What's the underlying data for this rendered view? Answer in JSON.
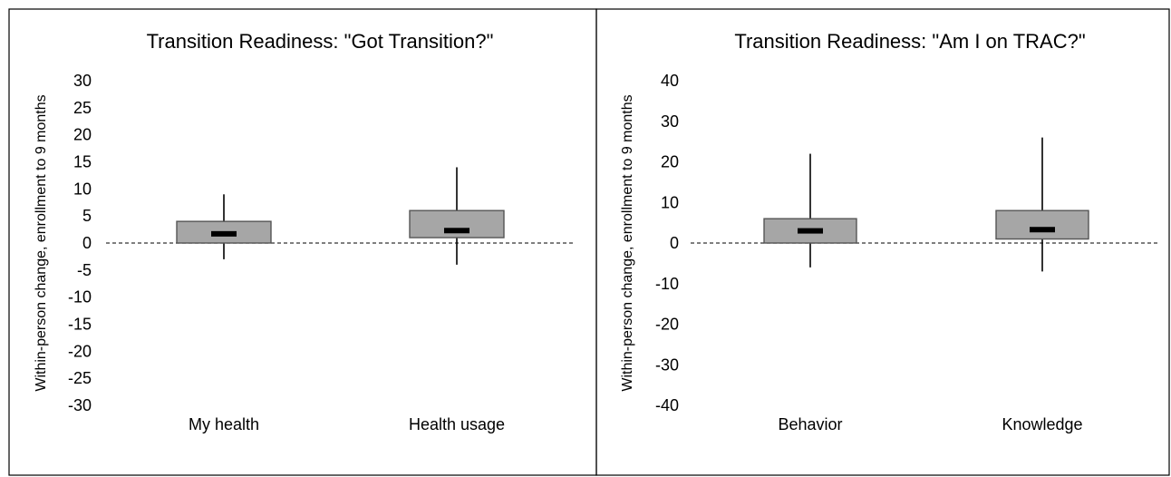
{
  "chart_data": [
    {
      "type": "box",
      "title": "Transition Readiness: \"Got Transition?\"",
      "ylabel": "Within-person change, enrollment to 9 months",
      "ylim": [
        -30,
        30
      ],
      "yticks": [
        30,
        25,
        20,
        15,
        10,
        5,
        0,
        -5,
        -10,
        -15,
        -20,
        -25,
        -30
      ],
      "reference_line": 0,
      "categories": [
        "My health",
        "Health usage"
      ],
      "boxes": [
        {
          "category": "My health",
          "whisker_low": -3,
          "q1": 0,
          "median": 1.7,
          "q3": 4,
          "whisker_high": 9
        },
        {
          "category": "Health usage",
          "whisker_low": -4,
          "q1": 1,
          "median": 2.3,
          "q3": 6,
          "whisker_high": 14
        }
      ],
      "colors": {
        "box_fill": "#a6a6a6",
        "box_stroke": "#555555",
        "median": "#000000"
      }
    },
    {
      "type": "box",
      "title": "Transition Readiness: \"Am I on TRAC?\"",
      "ylabel": "Within-person change, enrollment to 9 months",
      "ylim": [
        -40,
        40
      ],
      "yticks": [
        40,
        30,
        20,
        10,
        0,
        -10,
        -20,
        -30,
        -40
      ],
      "reference_line": 0,
      "categories": [
        "Behavior",
        "Knowledge"
      ],
      "boxes": [
        {
          "category": "Behavior",
          "whisker_low": -6,
          "q1": 0,
          "median": 3,
          "q3": 6,
          "whisker_high": 22
        },
        {
          "category": "Knowledge",
          "whisker_low": -7,
          "q1": 1,
          "median": 3.3,
          "q3": 8,
          "whisker_high": 26
        }
      ],
      "colors": {
        "box_fill": "#a6a6a6",
        "box_stroke": "#555555",
        "median": "#000000"
      }
    }
  ]
}
